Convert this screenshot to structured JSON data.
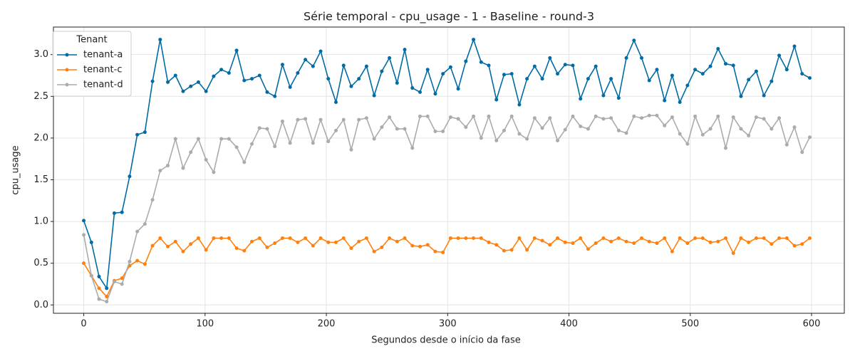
{
  "chart_data": {
    "type": "line",
    "title": "Série temporal - cpu_usage - 1 - Baseline - round-3",
    "xlabel": "Segundos desde o início da fase",
    "ylabel": "cpu_usage",
    "legend_title": "Tenant",
    "legend": "upper left",
    "grid": true,
    "x": [
      0,
      6.3,
      12.6,
      18.9,
      25.2,
      31.5,
      37.8,
      44.1,
      50.4,
      56.7,
      63,
      69.3,
      75.6,
      81.9,
      88.2,
      94.5,
      100.8,
      107.1,
      113.4,
      119.7,
      126,
      132.3,
      138.6,
      144.9,
      151.2,
      157.5,
      163.8,
      170.1,
      176.4,
      182.7,
      189,
      195.3,
      201.6,
      207.9,
      214.2,
      220.5,
      226.8,
      233.1,
      239.4,
      245.7,
      252,
      258.3,
      264.6,
      270.9,
      277.2,
      283.5,
      289.8,
      296.1,
      302.4,
      308.7,
      315,
      321.3,
      327.6,
      333.9,
      340.2,
      346.5,
      352.8,
      359.1,
      365.4,
      371.7,
      378,
      384.3,
      390.6,
      396.9,
      403.2,
      409.5,
      415.8,
      422.1,
      428.4,
      434.7,
      441,
      447.3,
      453.6,
      459.9,
      466.2,
      472.5,
      478.8,
      485.1,
      491.4,
      497.7,
      504,
      510.3,
      516.6,
      522.9,
      529.2,
      535.5,
      541.8,
      548.1,
      554.4,
      560.7,
      567,
      573.3,
      579.6,
      585.9,
      592.2,
      598.5
    ],
    "series": [
      {
        "name": "tenant-a",
        "color": "#006ba4",
        "values": [
          1.01,
          0.75,
          0.34,
          0.2,
          1.1,
          1.11,
          1.54,
          2.04,
          2.07,
          2.68,
          3.18,
          2.67,
          2.75,
          2.56,
          2.62,
          2.67,
          2.56,
          2.74,
          2.82,
          2.78,
          3.05,
          2.69,
          2.71,
          2.75,
          2.55,
          2.5,
          2.88,
          2.61,
          2.78,
          2.94,
          2.86,
          3.04,
          2.71,
          2.43,
          2.87,
          2.62,
          2.71,
          2.86,
          2.51,
          2.8,
          2.96,
          2.66,
          3.06,
          2.6,
          2.55,
          2.82,
          2.53,
          2.77,
          2.85,
          2.59,
          2.92,
          3.18,
          2.91,
          2.87,
          2.46,
          2.76,
          2.77,
          2.4,
          2.71,
          2.86,
          2.71,
          2.96,
          2.77,
          2.88,
          2.87,
          2.47,
          2.71,
          2.86,
          2.51,
          2.71,
          2.48,
          2.96,
          3.17,
          2.96,
          2.69,
          2.82,
          2.45,
          2.75,
          2.43,
          2.63,
          2.82,
          2.77,
          2.86,
          3.07,
          2.89,
          2.87,
          2.5,
          2.7,
          2.8,
          2.51,
          2.68,
          2.99,
          2.82,
          3.1,
          2.77,
          2.72
        ]
      },
      {
        "name": "tenant-c",
        "color": "#ff800e",
        "values": [
          0.5,
          0.35,
          0.2,
          0.1,
          0.29,
          0.32,
          0.47,
          0.53,
          0.49,
          0.71,
          0.8,
          0.7,
          0.76,
          0.64,
          0.73,
          0.8,
          0.66,
          0.8,
          0.8,
          0.8,
          0.68,
          0.65,
          0.76,
          0.8,
          0.69,
          0.74,
          0.8,
          0.8,
          0.75,
          0.8,
          0.71,
          0.8,
          0.75,
          0.75,
          0.8,
          0.68,
          0.76,
          0.8,
          0.64,
          0.69,
          0.8,
          0.76,
          0.8,
          0.71,
          0.7,
          0.72,
          0.64,
          0.63,
          0.8,
          0.8,
          0.8,
          0.8,
          0.8,
          0.75,
          0.72,
          0.65,
          0.66,
          0.8,
          0.66,
          0.8,
          0.77,
          0.72,
          0.8,
          0.75,
          0.74,
          0.8,
          0.67,
          0.74,
          0.8,
          0.76,
          0.8,
          0.76,
          0.74,
          0.8,
          0.76,
          0.74,
          0.8,
          0.64,
          0.8,
          0.74,
          0.8,
          0.8,
          0.75,
          0.76,
          0.8,
          0.62,
          0.8,
          0.75,
          0.8,
          0.8,
          0.73,
          0.8,
          0.8,
          0.71,
          0.73,
          0.8
        ]
      },
      {
        "name": "tenant-d",
        "color": "#ababab",
        "values": [
          0.84,
          0.35,
          0.07,
          0.04,
          0.28,
          0.25,
          0.52,
          0.88,
          0.97,
          1.26,
          1.61,
          1.67,
          1.99,
          1.64,
          1.83,
          1.99,
          1.74,
          1.59,
          1.99,
          1.99,
          1.89,
          1.71,
          1.93,
          2.12,
          2.11,
          1.9,
          2.2,
          1.94,
          2.22,
          2.23,
          1.94,
          2.22,
          1.96,
          2.09,
          2.22,
          1.86,
          2.22,
          2.24,
          1.99,
          2.13,
          2.25,
          2.11,
          2.11,
          1.88,
          2.26,
          2.26,
          2.08,
          2.08,
          2.25,
          2.23,
          2.13,
          2.26,
          2.0,
          2.26,
          1.97,
          2.09,
          2.26,
          2.05,
          1.99,
          2.24,
          2.12,
          2.24,
          1.97,
          2.1,
          2.26,
          2.14,
          2.11,
          2.26,
          2.23,
          2.24,
          2.09,
          2.06,
          2.26,
          2.24,
          2.27,
          2.27,
          2.15,
          2.25,
          2.05,
          1.93,
          2.26,
          2.04,
          2.11,
          2.26,
          1.88,
          2.25,
          2.11,
          2.03,
          2.25,
          2.23,
          2.11,
          2.24,
          1.92,
          2.13,
          1.83,
          2.01
        ]
      }
    ],
    "xlim": [
      -25,
      627
    ],
    "ylim": [
      -0.1,
      3.33
    ],
    "xticks": [
      0,
      100,
      200,
      300,
      400,
      500,
      600
    ],
    "yticks": [
      {
        "value": 0,
        "label": "0.0"
      },
      {
        "value": 0.5,
        "label": "0.5"
      },
      {
        "value": 1,
        "label": "1.0"
      },
      {
        "value": 1.5,
        "label": "1.5"
      },
      {
        "value": 2,
        "label": "2.0"
      },
      {
        "value": 2.5,
        "label": "2.5"
      },
      {
        "value": 3,
        "label": "3.0"
      }
    ]
  }
}
